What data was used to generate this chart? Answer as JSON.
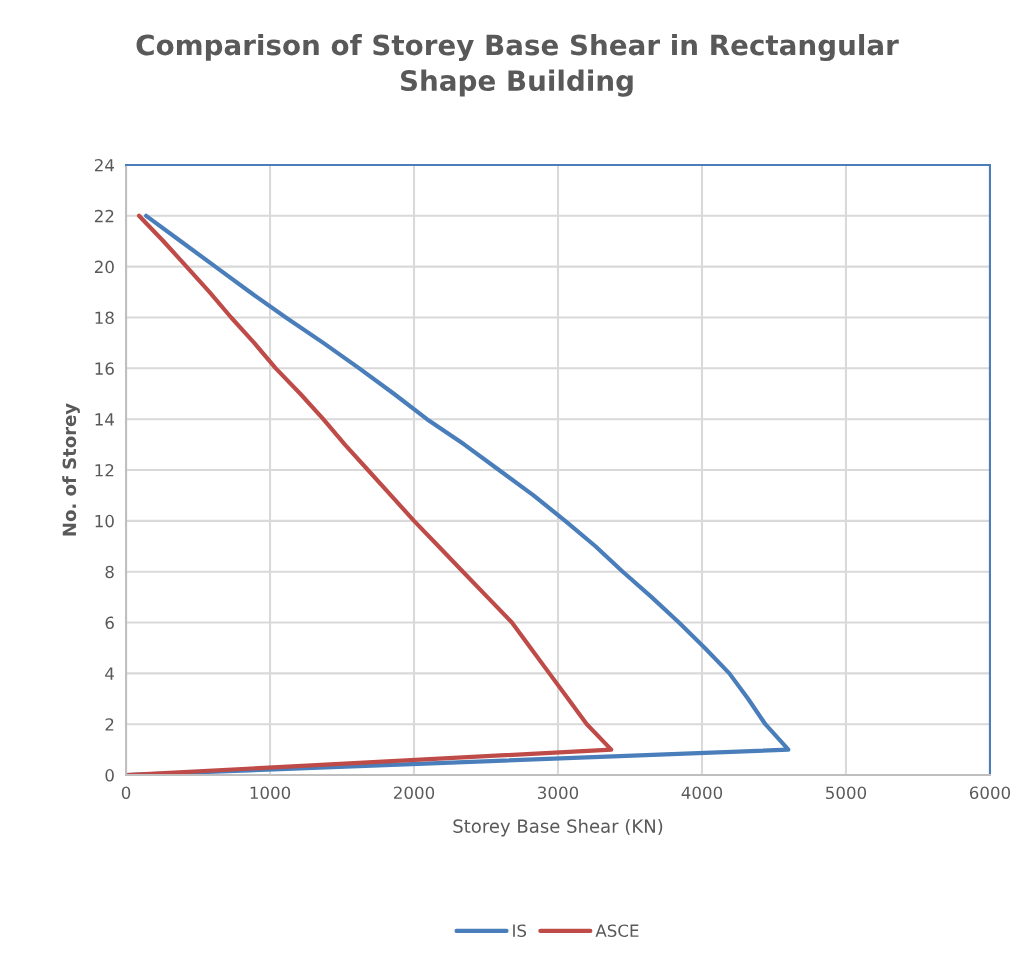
{
  "chart_data": {
    "type": "line",
    "title": "Comparison of Storey Base Shear in Rectangular\nShape Building",
    "xlabel": "Storey Base Shear (KN)",
    "ylabel": "No. of Storey",
    "xlim": [
      0,
      6000
    ],
    "xticks": [
      0,
      1000,
      2000,
      3000,
      4000,
      5000,
      6000
    ],
    "ylim": [
      0,
      24
    ],
    "yticks": [
      0,
      2,
      4,
      6,
      8,
      10,
      12,
      14,
      16,
      18,
      20,
      22,
      24
    ],
    "grid": true,
    "legend": "bottom",
    "marker": "none",
    "line_style": "solid",
    "series": [
      {
        "name": "IS",
        "color": "#4a7ebb",
        "x": [
          0,
          4600,
          4440,
          4320,
          4190,
          4020,
          3840,
          3650,
          3450,
          3260,
          3050,
          2830,
          2590,
          2350,
          2090,
          1860,
          1620,
          1370,
          1110,
          860,
          620,
          380,
          140
        ],
        "values": [
          0,
          1,
          2,
          3,
          4,
          5,
          6,
          7,
          8,
          9,
          10,
          11,
          12,
          13,
          14,
          15,
          16,
          17,
          18,
          19,
          20,
          21,
          22
        ]
      },
      {
        "name": "ASCE",
        "color": "#be4b48",
        "x": [
          0,
          3370,
          3200,
          3070,
          2940,
          2810,
          2680,
          2510,
          2340,
          2170,
          2000,
          1840,
          1680,
          1520,
          1370,
          1210,
          1040,
          890,
          730,
          580,
          420,
          260,
          90
        ],
        "values": [
          0,
          1,
          2,
          3,
          4,
          5,
          6,
          7,
          8,
          9,
          10,
          11,
          12,
          13,
          14,
          15,
          16,
          17,
          18,
          19,
          20,
          21,
          22
        ]
      }
    ]
  }
}
